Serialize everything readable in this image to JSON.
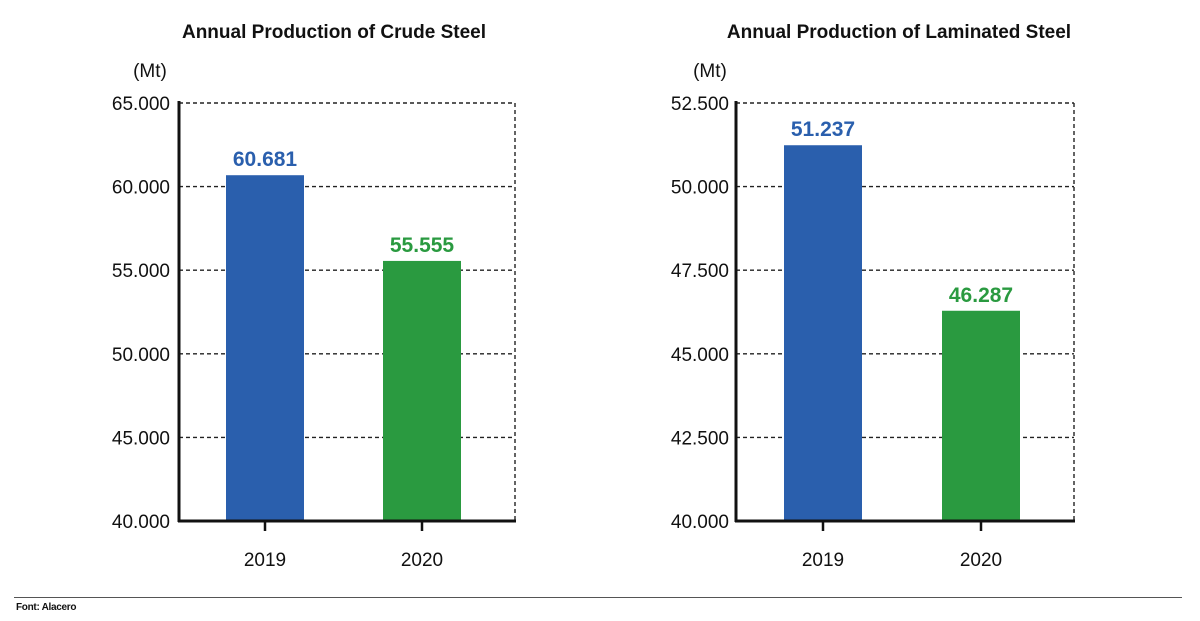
{
  "chart_data": [
    {
      "type": "bar",
      "title": "Annual Production of Crude Steel",
      "ylabel": "(Mt)",
      "xlabel": "",
      "categories": [
        "2019",
        "2020"
      ],
      "values": [
        60681,
        55555
      ],
      "value_labels": [
        "60.681",
        "55.555"
      ],
      "bar_colors": [
        "#2a5fad",
        "#2a9a40"
      ],
      "ylim": [
        40000,
        65000
      ],
      "yticks": [
        40000,
        45000,
        50000,
        55000,
        60000,
        65000
      ],
      "ytick_labels": [
        "40.000",
        "45.000",
        "50.000",
        "55.000",
        "60.000",
        "65.000"
      ],
      "grid": "dashed horizontal"
    },
    {
      "type": "bar",
      "title": "Annual Production of Laminated Steel",
      "ylabel": "(Mt)",
      "xlabel": "",
      "categories": [
        "2019",
        "2020"
      ],
      "values": [
        51237,
        46287
      ],
      "value_labels": [
        "51.237",
        "46.287"
      ],
      "bar_colors": [
        "#2a5fad",
        "#2a9a40"
      ],
      "ylim": [
        40000,
        52500
      ],
      "yticks": [
        40000,
        42500,
        45000,
        47500,
        50000,
        52500
      ],
      "ytick_labels": [
        "40.000",
        "42.500",
        "45.000",
        "47.500",
        "50.000",
        "52.500"
      ],
      "grid": "dashed horizontal"
    }
  ],
  "footer": {
    "source": "Font: Alacero"
  }
}
